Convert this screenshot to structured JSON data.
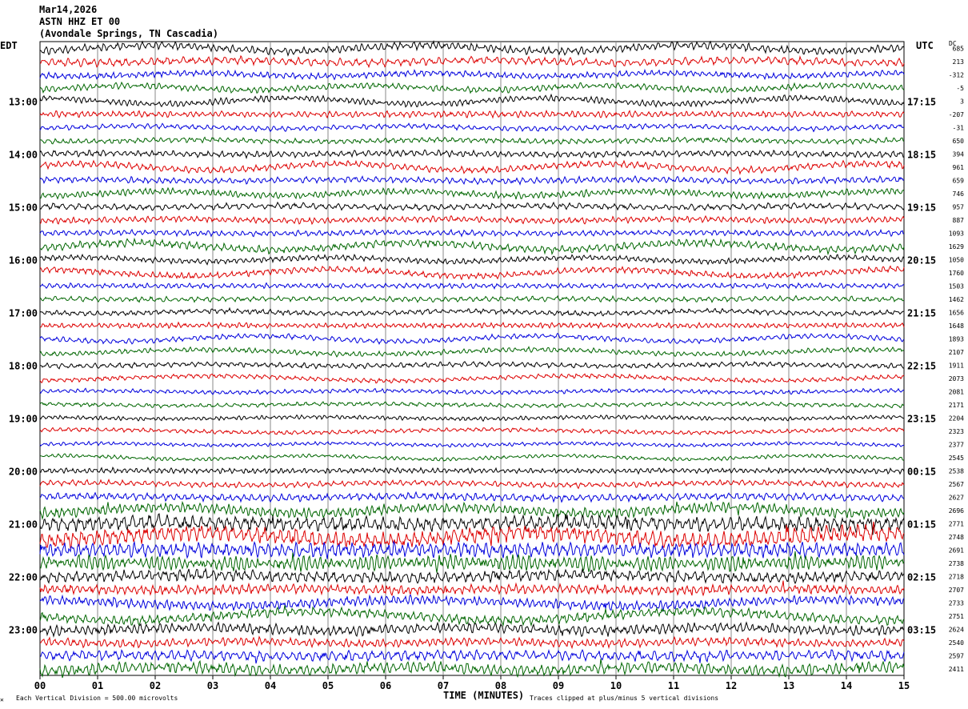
{
  "header": {
    "date": "Mar14,2026",
    "station": "ASTN HHZ ET 00",
    "location": "(Avondale Springs, TN Cascadia)"
  },
  "labels": {
    "left_tz": "EDT",
    "right_tz": "UTC",
    "dc": "DC",
    "xlabel": "TIME (MINUTES)",
    "scale_note": "Each Vertical Division =  500.00 microvolts",
    "clip_note": "Traces clipped at plus/minus 5 vertical divisions"
  },
  "chart_data": {
    "type": "line",
    "title": "ASTN HHZ ET 00",
    "xlabel": "TIME (MINUTES)",
    "ylabel": "",
    "xlim": [
      0,
      15
    ],
    "x_ticks": [
      "00",
      "01",
      "02",
      "03",
      "04",
      "05",
      "06",
      "07",
      "08",
      "09",
      "10",
      "11",
      "12",
      "13",
      "14",
      "15"
    ],
    "grid": true,
    "trace_count": 48,
    "trace_colors": [
      "#000000",
      "#dd0000",
      "#0000dd",
      "#006600"
    ],
    "left_hour_labels": [
      {
        "trace": 4,
        "label": "13:00"
      },
      {
        "trace": 8,
        "label": "14:00"
      },
      {
        "trace": 12,
        "label": "15:00"
      },
      {
        "trace": 16,
        "label": "16:00"
      },
      {
        "trace": 20,
        "label": "17:00"
      },
      {
        "trace": 24,
        "label": "18:00"
      },
      {
        "trace": 28,
        "label": "19:00"
      },
      {
        "trace": 32,
        "label": "20:00"
      },
      {
        "trace": 36,
        "label": "21:00"
      },
      {
        "trace": 40,
        "label": "22:00"
      },
      {
        "trace": 44,
        "label": "23:00"
      }
    ],
    "right_hour_labels": [
      {
        "trace": 4,
        "label": "17:15"
      },
      {
        "trace": 8,
        "label": "18:15"
      },
      {
        "trace": 12,
        "label": "19:15"
      },
      {
        "trace": 16,
        "label": "20:15"
      },
      {
        "trace": 20,
        "label": "21:15"
      },
      {
        "trace": 24,
        "label": "22:15"
      },
      {
        "trace": 28,
        "label": "23:15"
      },
      {
        "trace": 32,
        "label": "00:15"
      },
      {
        "trace": 36,
        "label": "01:15"
      },
      {
        "trace": 40,
        "label": "02:15"
      },
      {
        "trace": 44,
        "label": "03:15"
      }
    ],
    "dc_offsets": [
      "685",
      "213",
      "-312",
      "-5",
      "3",
      "-207",
      "-31",
      "650",
      "394",
      "961",
      "659",
      "746",
      "957",
      "887",
      "1093",
      "1629",
      "1050",
      "1760",
      "1503",
      "1462",
      "1656",
      "1648",
      "1893",
      "2107",
      "1911",
      "2073",
      "2081",
      "2171",
      "2204",
      "2323",
      "2377",
      "2545",
      "2538",
      "2567",
      "2627",
      "2696",
      "2771",
      "2748",
      "2691",
      "2738",
      "2718",
      "2707",
      "2733",
      "2751",
      "2624",
      "2540",
      "2597",
      "2411"
    ],
    "trace_amplitude": [
      1.5,
      1.5,
      1.2,
      1.2,
      1.2,
      1.2,
      1.0,
      1.0,
      1.2,
      1.3,
      1.2,
      1.3,
      1.2,
      1.2,
      1.1,
      1.5,
      1.1,
      1.2,
      1.0,
      1.0,
      1.0,
      1.0,
      1.0,
      1.0,
      1.0,
      0.9,
      0.8,
      0.8,
      0.8,
      0.8,
      0.7,
      0.7,
      1.0,
      1.1,
      1.4,
      2.0,
      2.8,
      3.2,
      2.8,
      2.8,
      2.2,
      1.8,
      1.8,
      1.8,
      2.0,
      1.6,
      2.0,
      2.2
    ]
  }
}
